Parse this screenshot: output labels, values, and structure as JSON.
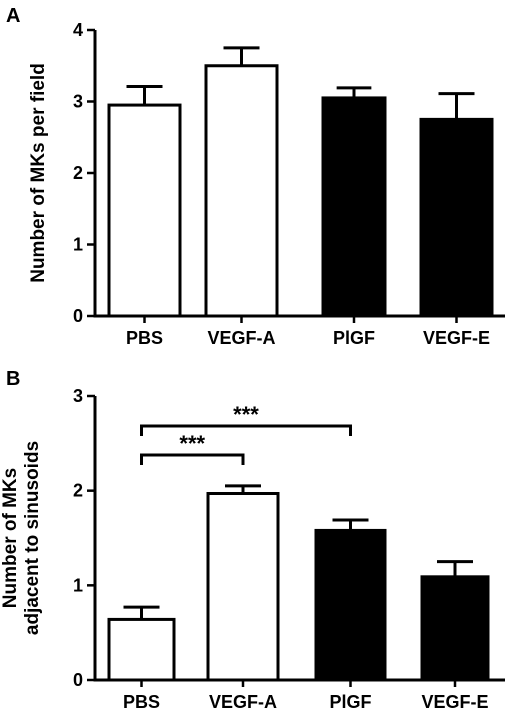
{
  "chart_data": [
    {
      "panel": "A",
      "type": "bar",
      "categories": [
        "PBS",
        "VEGF-A",
        "PlGF",
        "VEGF-E"
      ],
      "values": [
        2.95,
        3.5,
        3.05,
        2.75
      ],
      "errors": [
        0.26,
        0.25,
        0.14,
        0.36
      ],
      "bar_colors": [
        "#ffffff",
        "#ffffff",
        "#000000",
        "#000000"
      ],
      "ylabel": "Number of MKs per field",
      "ylabel_lines": [
        "Number of MKs per field"
      ],
      "ylim": [
        0,
        4
      ],
      "yticks": [
        0,
        1,
        2,
        3,
        4
      ],
      "ytick_labels": [
        "0",
        "1",
        "2",
        "3",
        "4"
      ],
      "significance": []
    },
    {
      "panel": "B",
      "type": "bar",
      "categories": [
        "PBS",
        "VEGF-A",
        "PlGF",
        "VEGF-E"
      ],
      "values": [
        0.64,
        1.97,
        1.58,
        1.09
      ],
      "errors": [
        0.13,
        0.08,
        0.11,
        0.16
      ],
      "bar_colors": [
        "#ffffff",
        "#ffffff",
        "#000000",
        "#000000"
      ],
      "ylabel": "Number of MKs adjacent to sinusoids",
      "ylabel_lines": [
        "Number of MKs",
        "adjacent to sinusoids"
      ],
      "ylim": [
        0,
        3
      ],
      "yticks": [
        0,
        1,
        2,
        3
      ],
      "ytick_labels": [
        "0",
        "1",
        "2",
        "3"
      ],
      "significance": [
        {
          "from": 0,
          "to": 1,
          "label": "***"
        },
        {
          "from": 0,
          "to": 2,
          "label": "***"
        }
      ]
    }
  ]
}
